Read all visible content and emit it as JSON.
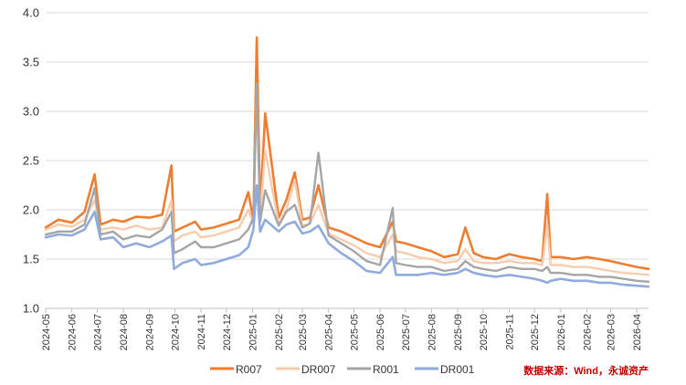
{
  "chart_data": {
    "type": "line",
    "title": "",
    "xlabel": "",
    "ylabel": "",
    "ylim": [
      1.0,
      4.0
    ],
    "yticks": [
      "1.0",
      "1.5",
      "2.0",
      "2.5",
      "3.0",
      "3.5",
      "4.0"
    ],
    "x_tick_labels": [
      "2024-05",
      "2024-06",
      "2024-07",
      "2024-08",
      "2024-09",
      "2024-10",
      "2024-11",
      "2024-12",
      "2025-01",
      "2025-02",
      "2025-03",
      "2025-04",
      "2025-05",
      "2025-06",
      "2025-07",
      "2025-08",
      "2025-09",
      "2025-10",
      "2025-11",
      "2025-12",
      "2026-01",
      "2026-02",
      "2026-03",
      "2026-04"
    ],
    "grid": "horizontal",
    "legend_position": "bottom",
    "x": [
      "2024-05-01",
      "2024-05-16",
      "2024-06-01",
      "2024-06-16",
      "2024-06-28",
      "2024-07-05",
      "2024-07-20",
      "2024-08-01",
      "2024-08-16",
      "2024-09-01",
      "2024-09-16",
      "2024-09-27",
      "2024-09-30",
      "2024-10-10",
      "2024-10-25",
      "2024-11-01",
      "2024-11-16",
      "2024-12-01",
      "2024-12-16",
      "2024-12-27",
      "2025-01-02",
      "2025-01-06",
      "2025-01-10",
      "2025-01-16",
      "2025-02-01",
      "2025-02-10",
      "2025-02-20",
      "2025-03-01",
      "2025-03-10",
      "2025-03-20",
      "2025-04-01",
      "2025-04-16",
      "2025-05-01",
      "2025-05-16",
      "2025-06-01",
      "2025-06-16",
      "2025-06-20",
      "2025-07-01",
      "2025-07-16",
      "2025-08-01",
      "2025-08-16",
      "2025-09-01",
      "2025-09-10",
      "2025-09-20",
      "2025-10-01",
      "2025-10-16",
      "2025-11-01",
      "2025-11-16",
      "2025-12-01",
      "2025-12-10",
      "2025-12-16",
      "2025-12-20",
      "2026-01-01",
      "2026-01-16",
      "2026-02-01",
      "2026-02-16",
      "2026-03-01",
      "2026-03-16",
      "2026-04-01",
      "2026-04-15"
    ],
    "series": [
      {
        "name": "R007",
        "color": "#ed7d31",
        "width": 2.6,
        "values": [
          1.82,
          1.9,
          1.87,
          1.98,
          2.36,
          1.85,
          1.9,
          1.88,
          1.93,
          1.92,
          1.95,
          2.45,
          1.78,
          1.82,
          1.88,
          1.8,
          1.82,
          1.86,
          1.9,
          2.18,
          1.9,
          3.75,
          2.0,
          2.98,
          1.92,
          2.1,
          2.38,
          1.9,
          1.92,
          2.25,
          1.82,
          1.78,
          1.72,
          1.66,
          1.62,
          1.88,
          1.68,
          1.66,
          1.62,
          1.58,
          1.52,
          1.55,
          1.82,
          1.56,
          1.52,
          1.5,
          1.55,
          1.52,
          1.5,
          1.48,
          2.16,
          1.52,
          1.52,
          1.5,
          1.52,
          1.5,
          1.48,
          1.45,
          1.42,
          1.4
        ]
      },
      {
        "name": "DR007",
        "color": "#f8cbad",
        "width": 2.4,
        "values": [
          1.8,
          1.85,
          1.83,
          1.9,
          2.1,
          1.8,
          1.82,
          1.8,
          1.84,
          1.8,
          1.82,
          2.1,
          1.68,
          1.74,
          1.78,
          1.72,
          1.74,
          1.78,
          1.82,
          2.0,
          1.86,
          3.25,
          1.92,
          2.6,
          1.86,
          2.0,
          2.3,
          1.84,
          1.86,
          2.05,
          1.76,
          1.7,
          1.64,
          1.56,
          1.52,
          1.75,
          1.58,
          1.56,
          1.52,
          1.5,
          1.46,
          1.48,
          1.6,
          1.48,
          1.46,
          1.46,
          1.48,
          1.46,
          1.46,
          1.44,
          1.85,
          1.44,
          1.44,
          1.42,
          1.42,
          1.4,
          1.38,
          1.36,
          1.35,
          1.34
        ]
      },
      {
        "name": "R001",
        "color": "#a5a5a5",
        "width": 2.4,
        "values": [
          1.75,
          1.78,
          1.78,
          1.85,
          2.22,
          1.75,
          1.78,
          1.7,
          1.74,
          1.72,
          1.8,
          1.98,
          1.56,
          1.6,
          1.68,
          1.62,
          1.62,
          1.66,
          1.7,
          1.8,
          1.92,
          3.28,
          1.88,
          2.2,
          1.84,
          1.98,
          2.05,
          1.82,
          1.86,
          2.58,
          1.74,
          1.66,
          1.58,
          1.48,
          1.44,
          2.02,
          1.46,
          1.44,
          1.42,
          1.42,
          1.38,
          1.4,
          1.48,
          1.42,
          1.4,
          1.38,
          1.42,
          1.4,
          1.4,
          1.38,
          1.42,
          1.36,
          1.36,
          1.34,
          1.34,
          1.32,
          1.32,
          1.3,
          1.28,
          1.27
        ]
      },
      {
        "name": "DR001",
        "color": "#8faadc",
        "width": 2.6,
        "values": [
          1.72,
          1.75,
          1.74,
          1.8,
          1.98,
          1.7,
          1.72,
          1.62,
          1.66,
          1.62,
          1.68,
          1.74,
          1.4,
          1.46,
          1.5,
          1.44,
          1.46,
          1.5,
          1.54,
          1.62,
          1.8,
          2.25,
          1.78,
          1.9,
          1.78,
          1.85,
          1.88,
          1.76,
          1.78,
          1.84,
          1.66,
          1.56,
          1.48,
          1.38,
          1.36,
          1.52,
          1.34,
          1.34,
          1.34,
          1.36,
          1.34,
          1.36,
          1.4,
          1.36,
          1.34,
          1.32,
          1.34,
          1.32,
          1.3,
          1.28,
          1.26,
          1.28,
          1.3,
          1.28,
          1.28,
          1.26,
          1.26,
          1.24,
          1.23,
          1.22
        ]
      }
    ],
    "source_note": "数据来源：Wind，永诚资产"
  }
}
